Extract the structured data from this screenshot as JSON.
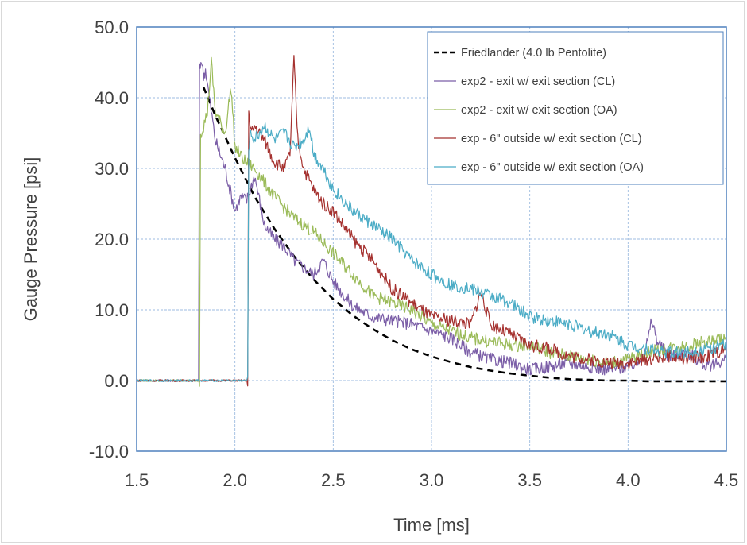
{
  "chart_data": {
    "type": "line",
    "title": "",
    "xlabel": "Time [ms]",
    "ylabel": "Gauge Pressure [psi]",
    "xlim": [
      1.5,
      4.5
    ],
    "ylim": [
      -10,
      50
    ],
    "x_ticks": [
      1.5,
      2.0,
      2.5,
      3.0,
      3.5,
      4.0,
      4.5
    ],
    "x_tick_labels": [
      "1.5",
      "2.0",
      "2.5",
      "3.0",
      "3.5",
      "4.0",
      "4.5"
    ],
    "y_ticks": [
      -10,
      0,
      10,
      20,
      30,
      40,
      50
    ],
    "y_tick_labels": [
      "-10.0",
      "0.0",
      "10.0",
      "20.0",
      "30.0",
      "40.0",
      "50.0"
    ],
    "grid": true,
    "legend_position": "top-right",
    "series": [
      {
        "name": "Friedlander (4.0 lb Pentolite)",
        "color": "#000000",
        "dashed": true,
        "x": [
          1.84,
          1.9,
          2.0,
          2.1,
          2.2,
          2.3,
          2.4,
          2.5,
          2.6,
          2.7,
          2.8,
          2.9,
          3.0,
          3.1,
          3.2,
          3.3,
          3.4,
          3.5,
          3.6,
          3.7,
          3.8,
          3.9,
          4.0,
          4.1,
          4.2,
          4.3,
          4.4,
          4.5
        ],
        "y": [
          41.5,
          37.5,
          31.5,
          26.0,
          21.5,
          17.6,
          14.3,
          11.5,
          9.2,
          7.3,
          5.7,
          4.4,
          3.4,
          2.6,
          1.9,
          1.4,
          1.0,
          0.7,
          0.4,
          0.2,
          0.1,
          0.0,
          0.0,
          -0.1,
          -0.1,
          -0.1,
          -0.1,
          -0.1
        ]
      },
      {
        "name": "exp2 - exit w/ exit section (CL)",
        "color": "#7b5ea7",
        "dashed": false,
        "x": [
          1.5,
          1.815,
          1.82,
          1.83,
          1.84,
          1.85,
          1.87,
          1.9,
          1.95,
          2.0,
          2.03,
          2.06,
          2.1,
          2.15,
          2.2,
          2.25,
          2.3,
          2.35,
          2.4,
          2.45,
          2.5,
          2.6,
          2.7,
          2.8,
          2.9,
          3.0,
          3.1,
          3.2,
          3.3,
          3.4,
          3.5,
          3.6,
          3.7,
          3.8,
          3.9,
          4.0,
          4.05,
          4.1,
          4.12,
          4.15,
          4.2,
          4.3,
          4.4,
          4.5
        ],
        "y": [
          0.0,
          0.0,
          44.0,
          45.5,
          43.0,
          44.0,
          40.0,
          34.0,
          30.0,
          24.0,
          26.0,
          25.5,
          29.0,
          22.0,
          20.0,
          19.0,
          17.0,
          16.0,
          15.0,
          17.0,
          14.0,
          10.5,
          9.0,
          8.5,
          8.0,
          7.0,
          6.0,
          4.0,
          3.0,
          2.5,
          1.5,
          2.0,
          2.5,
          2.0,
          1.5,
          2.0,
          2.5,
          5.5,
          8.5,
          5.5,
          3.5,
          4.0,
          2.0,
          3.0
        ]
      },
      {
        "name": "exp2 - exit w/ exit section (OA)",
        "color": "#9bbb59",
        "dashed": false,
        "x": [
          1.5,
          1.82,
          1.825,
          1.84,
          1.86,
          1.88,
          1.9,
          1.95,
          1.98,
          2.0,
          2.05,
          2.1,
          2.2,
          2.3,
          2.4,
          2.5,
          2.6,
          2.7,
          2.8,
          2.9,
          3.0,
          3.1,
          3.2,
          3.3,
          3.4,
          3.5,
          3.6,
          3.7,
          3.8,
          3.9,
          4.0,
          4.1,
          4.2,
          4.3,
          4.4,
          4.5
        ],
        "y": [
          0.0,
          0.0,
          35.0,
          36.0,
          38.0,
          45.0,
          38.0,
          35.0,
          41.5,
          33.0,
          31.0,
          30.0,
          26.0,
          23.0,
          21.0,
          18.0,
          15.0,
          12.0,
          11.0,
          10.0,
          8.0,
          7.0,
          6.0,
          5.5,
          5.0,
          5.0,
          4.0,
          3.5,
          3.0,
          2.5,
          3.0,
          4.0,
          4.5,
          5.0,
          5.5,
          6.0
        ]
      },
      {
        "name": "exp - 6\" outside w/ exit section (CL)",
        "color": "#a5312f",
        "dashed": false,
        "x": [
          1.5,
          2.065,
          2.07,
          2.08,
          2.1,
          2.15,
          2.2,
          2.25,
          2.28,
          2.3,
          2.32,
          2.35,
          2.4,
          2.45,
          2.5,
          2.55,
          2.6,
          2.7,
          2.8,
          2.9,
          3.0,
          3.1,
          3.2,
          3.25,
          3.3,
          3.4,
          3.5,
          3.6,
          3.7,
          3.8,
          3.9,
          4.0,
          4.1,
          4.2,
          4.3,
          4.4,
          4.5
        ],
        "y": [
          0.0,
          0.0,
          38.0,
          35.0,
          36.0,
          34.0,
          31.0,
          30.0,
          32.0,
          45.5,
          34.0,
          30.0,
          27.0,
          25.0,
          24.0,
          22.0,
          20.0,
          17.0,
          13.0,
          11.0,
          9.0,
          8.5,
          8.0,
          12.5,
          8.0,
          6.5,
          5.0,
          4.5,
          3.5,
          3.0,
          2.5,
          2.5,
          3.0,
          3.5,
          3.0,
          3.5,
          4.5
        ]
      },
      {
        "name": "exp - 6\" outside w/ exit section (OA)",
        "color": "#4bacc6",
        "dashed": false,
        "x": [
          1.5,
          2.065,
          2.07,
          2.08,
          2.1,
          2.15,
          2.2,
          2.25,
          2.3,
          2.35,
          2.38,
          2.4,
          2.45,
          2.5,
          2.6,
          2.7,
          2.8,
          2.9,
          3.0,
          3.1,
          3.2,
          3.3,
          3.4,
          3.5,
          3.6,
          3.7,
          3.8,
          3.9,
          4.0,
          4.1,
          4.2,
          4.3,
          4.4,
          4.5
        ],
        "y": [
          0.0,
          0.0,
          33.0,
          35.0,
          34.0,
          36.0,
          34.0,
          35.0,
          33.0,
          34.0,
          36.0,
          32.0,
          30.0,
          27.0,
          24.0,
          22.0,
          20.0,
          17.0,
          15.0,
          13.5,
          13.0,
          12.0,
          11.0,
          9.0,
          8.5,
          8.0,
          7.0,
          6.5,
          5.0,
          4.5,
          4.0,
          4.0,
          4.5,
          5.0
        ]
      }
    ]
  }
}
